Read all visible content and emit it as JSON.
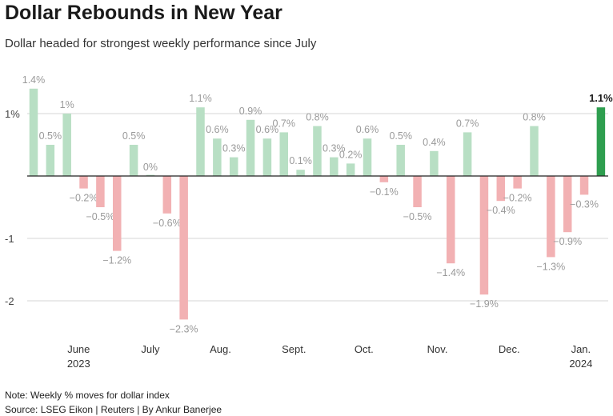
{
  "title": "Dollar Rebounds in New Year",
  "subtitle": "Dollar headed for strongest weekly performance since July",
  "note": "Note: Weekly % moves for dollar index",
  "source": "Source: LSEG Eikon | Reuters | By Ankur Banerjee",
  "colors": {
    "positive": "#b8dfc4",
    "negative": "#f2b1b3",
    "highlight": "#2e9e4f",
    "label": "#9a9a9a",
    "highlight_label": "#1a1a1a"
  },
  "chart_data": {
    "type": "bar",
    "ylim": [
      -2.7,
      1.5
    ],
    "y_ticks": [
      {
        "value": 1,
        "label": "1%"
      },
      {
        "value": -1,
        "label": "-1"
      },
      {
        "value": -2,
        "label": "-2"
      }
    ],
    "x_ticks": [
      {
        "label": "June",
        "sub": "2023",
        "at": 2.7
      },
      {
        "label": "July",
        "sub": "",
        "at": 7.0
      },
      {
        "label": "Aug.",
        "sub": "",
        "at": 11.2
      },
      {
        "label": "Sept.",
        "sub": "",
        "at": 15.6
      },
      {
        "label": "Oct.",
        "sub": "",
        "at": 19.8
      },
      {
        "label": "Nov.",
        "sub": "",
        "at": 24.2
      },
      {
        "label": "Dec.",
        "sub": "",
        "at": 28.5
      },
      {
        "label": "Jan.",
        "sub": "2024",
        "at": 32.8
      }
    ],
    "values": [
      1.4,
      0.5,
      1.0,
      -0.2,
      -0.5,
      -1.2,
      0.5,
      0.0,
      -0.6,
      -2.3,
      1.1,
      0.6,
      0.3,
      0.9,
      0.6,
      0.7,
      0.1,
      0.8,
      0.3,
      0.2,
      0.6,
      -0.1,
      0.5,
      -0.5,
      0.4,
      -1.4,
      0.7,
      -1.9,
      -0.4,
      -0.2,
      0.8,
      -1.3,
      -0.9,
      -0.3,
      1.1
    ],
    "labels": [
      "1.4%",
      "0.5%",
      "1%",
      "−0.2%",
      "−0.5%",
      "−1.2%",
      "0.5%",
      "0%",
      "−0.6%",
      "−2.3%",
      "1.1%",
      "0.6%",
      "0.3%",
      "0.9%",
      "0.6%",
      "0.7%",
      "0.1%",
      "0.8%",
      "0.3%",
      "0.2%",
      "0.6%",
      "−0.1%",
      "0.5%",
      "−0.5%",
      "0.4%",
      "−1.4%",
      "0.7%",
      "−1.9%",
      "−0.4%",
      "−0.2%",
      "0.8%",
      "−1.3%",
      "−0.9%",
      "−0.3%",
      "1.1%"
    ],
    "highlight_index": 34
  }
}
